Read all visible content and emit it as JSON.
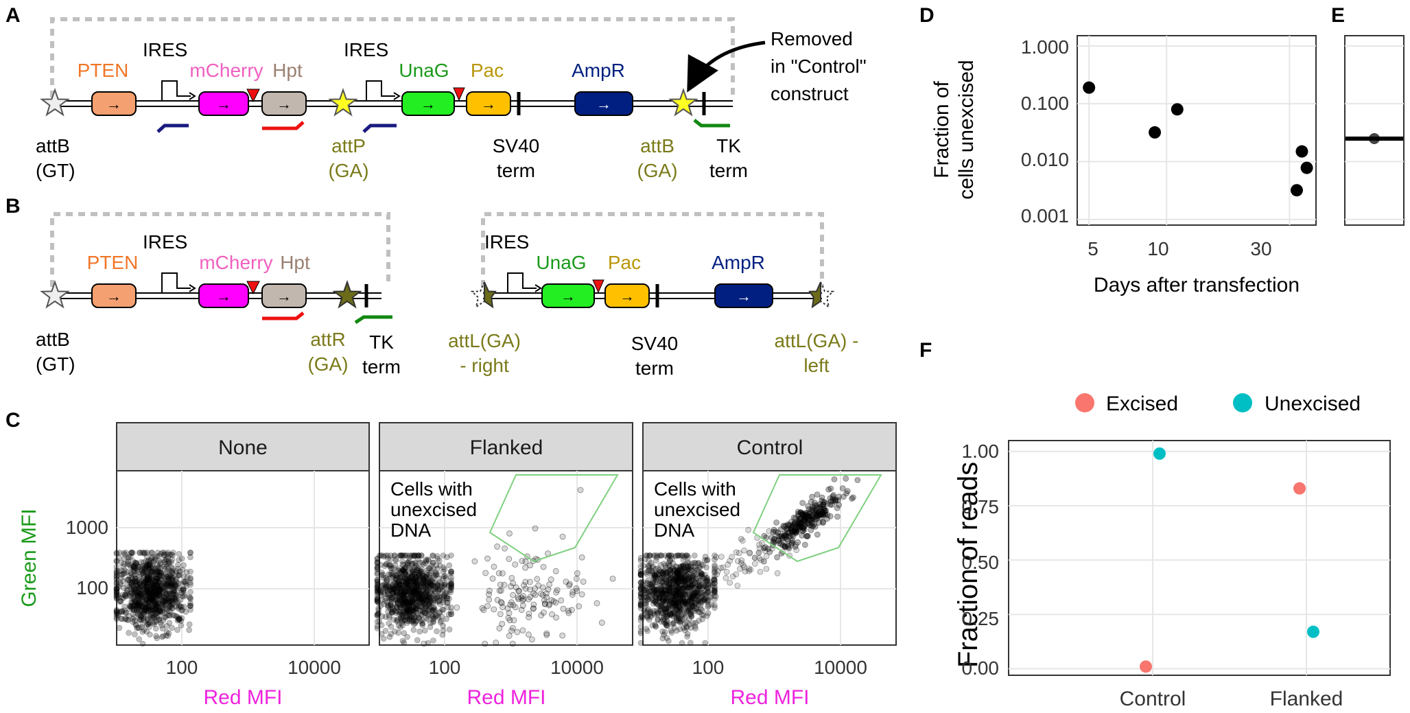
{
  "colors": {
    "pten": "#f5a070",
    "pten_text": "#f07628",
    "mcherry": "#ff00ff",
    "mcherry_text": "#f060c0",
    "hpt": "#c2b7ae",
    "hpt_text": "#9a8070",
    "unag": "#22ee22",
    "unag_text": "#1a9a1a",
    "pac": "#ffc000",
    "pac_text": "#b8960a",
    "ampr": "#001f80",
    "ampr_text": "#001f80",
    "att_olive": "#7a7a1a",
    "star_yellow": "#ffff22",
    "star_olive": "#6b6b1a",
    "primer_navy": "#1a1a80",
    "primer_red": "#ee1111",
    "primer_green": "#118811",
    "green_axis": "#1a9a1a",
    "magenta_axis": "#ee22dd",
    "gate": "#7fd07f",
    "excised": "#f8766d",
    "unexcised": "#00bfc4"
  },
  "panels": {
    "A": {
      "label": "A",
      "genes": [
        "PTEN",
        "mCherry",
        "Hpt",
        "UnaG",
        "Pac",
        "AmpR"
      ],
      "ires": [
        "IRES",
        "IRES"
      ],
      "sites": [
        {
          "lines": [
            "attB",
            "(GT)"
          ]
        },
        {
          "lines": [
            "attP",
            "(GA)"
          ]
        },
        {
          "lines": [
            "SV40",
            "term"
          ]
        },
        {
          "lines": [
            "attB",
            "(GA)"
          ]
        },
        {
          "lines": [
            "TK",
            "term"
          ]
        }
      ],
      "callout": [
        "Removed",
        "in \"Control\"",
        "construct"
      ]
    },
    "B": {
      "label": "B",
      "left_genes": [
        "PTEN",
        "mCherry",
        "Hpt"
      ],
      "left_ires": "IRES",
      "left_sites": [
        {
          "lines": [
            "attB",
            "(GT)"
          ]
        },
        {
          "lines": [
            "attR",
            "(GA)"
          ]
        },
        {
          "lines": [
            "TK",
            "term"
          ]
        }
      ],
      "right_genes": [
        "UnaG",
        "Pac",
        "AmpR"
      ],
      "right_ires": "IRES",
      "right_sites": [
        {
          "lines": [
            "attL(GA)",
            "- right"
          ]
        },
        {
          "lines": [
            "SV40",
            "term"
          ]
        },
        {
          "lines": [
            "attL(GA) -",
            "left"
          ]
        }
      ]
    },
    "C": {
      "label": "C",
      "facets": [
        "None",
        "Flanked",
        "Control"
      ],
      "gate_label": [
        "Cells with",
        "unexcised",
        "DNA"
      ],
      "x_title": "Red MFI",
      "y_title": "Green MFI",
      "x_ticks": [
        "100",
        "10000"
      ],
      "y_ticks": [
        "1000",
        "100"
      ]
    },
    "D": {
      "label": "D",
      "y_title": [
        "Fraction of",
        "cells unexcised"
      ],
      "x_title": "Days after transfection",
      "y_ticks": [
        "1.000",
        "0.100",
        "0.010",
        "0.001"
      ],
      "x_ticks": [
        "5",
        "10",
        "30"
      ]
    },
    "E": {
      "label": "E"
    },
    "F": {
      "label": "F",
      "legend": [
        "Excised",
        "Unexcised"
      ],
      "y_title": "Fraction of reads",
      "y_ticks": [
        "1.00",
        "0.75",
        "0.50",
        "0.25",
        "0.00"
      ],
      "x_ticks": [
        "Control",
        "Flanked"
      ]
    }
  },
  "chart_data": [
    {
      "type": "scatter",
      "panel": "D",
      "xlabel": "Days after transfection",
      "ylabel": "Fraction of cells unexcised",
      "x_scale": "log",
      "y_scale": "log",
      "xlim": [
        4.5,
        38
      ],
      "ylim": [
        0.0008,
        1.5
      ],
      "x": [
        5,
        9,
        11,
        32,
        33.5,
        35
      ],
      "y": [
        0.19,
        0.032,
        0.08,
        0.0032,
        0.015,
        0.0078
      ]
    },
    {
      "type": "scatter",
      "panel": "E",
      "ylim": [
        0.0008,
        1.5
      ],
      "y_scale": "log",
      "mean": 0.025
    },
    {
      "type": "scatter",
      "panel": "F",
      "xlabel": "",
      "ylabel": "Fraction of reads",
      "categories": [
        "Control",
        "Flanked"
      ],
      "ylim": [
        -0.03,
        1.05
      ],
      "series": [
        {
          "name": "Excised",
          "values": [
            0.01,
            0.83
          ]
        },
        {
          "name": "Unexcised",
          "values": [
            0.99,
            0.17
          ]
        }
      ]
    },
    {
      "type": "scatter",
      "panel": "C",
      "xlabel": "Red MFI",
      "ylabel": "Green MFI",
      "x_scale": "log",
      "y_scale": "log",
      "facets": [
        "None",
        "Flanked",
        "Control"
      ]
    }
  ]
}
